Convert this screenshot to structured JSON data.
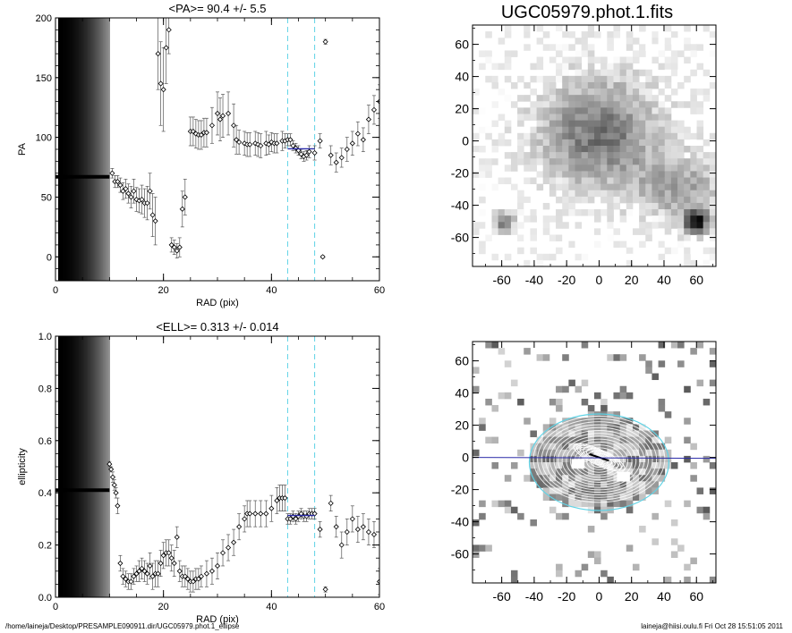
{
  "footer": {
    "path": "/home/laineja/Desktop/PRESAMPLE090911.dir/UGC05979.phot.1_ellipse",
    "stamp": "laineja@hiisi.oulu.fi  Fri Oct 28 15:51:05 2011"
  },
  "colors": {
    "marker": "#000000",
    "fit": "#2a2aa8",
    "guide": "#5fd3e6"
  },
  "chart_data": [
    {
      "type": "scatter",
      "title": "<PA>=  90.4 +/-   5.5",
      "xlabel": "RAD (pix)",
      "ylabel": "PA",
      "xlim": [
        0,
        60
      ],
      "ylim": [
        -20,
        200
      ],
      "xticks": [
        "0",
        "20",
        "40",
        "60"
      ],
      "yticks": [
        "0",
        "50",
        "100",
        "150",
        "200"
      ],
      "guide_lines_x": [
        43,
        48
      ],
      "points": [
        [
          10.5,
          70,
          4
        ],
        [
          11,
          63,
          5
        ],
        [
          11.5,
          63,
          5
        ],
        [
          12,
          60,
          6
        ],
        [
          12.5,
          55,
          7
        ],
        [
          13,
          57,
          8
        ],
        [
          13.5,
          53,
          8
        ],
        [
          14,
          50,
          9
        ],
        [
          14.5,
          55,
          10
        ],
        [
          15,
          48,
          10
        ],
        [
          15.5,
          47,
          10
        ],
        [
          16,
          48,
          12
        ],
        [
          16.5,
          45,
          12
        ],
        [
          17,
          45,
          14
        ],
        [
          17.5,
          55,
          15
        ],
        [
          18,
          35,
          18
        ],
        [
          18.5,
          30,
          20
        ],
        [
          19,
          170,
          30
        ],
        [
          19.5,
          145,
          35
        ],
        [
          20,
          140,
          35
        ],
        [
          20.5,
          175,
          30
        ],
        [
          21,
          190,
          20
        ],
        [
          21.5,
          10,
          6
        ],
        [
          22,
          8,
          6
        ],
        [
          22.5,
          5,
          6
        ],
        [
          23,
          8,
          8
        ],
        [
          23.5,
          40,
          15
        ],
        [
          24,
          50,
          15
        ],
        [
          25,
          105,
          12
        ],
        [
          25.5,
          105,
          12
        ],
        [
          26,
          103,
          12
        ],
        [
          26.5,
          102,
          12
        ],
        [
          27,
          102,
          12
        ],
        [
          27.5,
          104,
          12
        ],
        [
          28,
          104,
          12
        ],
        [
          29,
          110,
          15
        ],
        [
          30,
          120,
          18
        ],
        [
          30.5,
          115,
          18
        ],
        [
          31,
          118,
          18
        ],
        [
          32,
          120,
          18
        ],
        [
          33,
          110,
          18
        ],
        [
          33.5,
          98,
          12
        ],
        [
          34,
          96,
          10
        ],
        [
          35,
          95,
          10
        ],
        [
          35.5,
          94,
          10
        ],
        [
          36,
          94,
          10
        ],
        [
          37,
          95,
          10
        ],
        [
          37.5,
          94,
          10
        ],
        [
          38,
          93,
          10
        ],
        [
          39,
          95,
          10
        ],
        [
          39.5,
          94,
          8
        ],
        [
          40,
          96,
          8
        ],
        [
          40.5,
          95,
          8
        ],
        [
          41,
          95,
          8
        ],
        [
          42,
          97,
          8
        ],
        [
          42.5,
          97,
          6
        ],
        [
          43,
          98,
          5
        ],
        [
          43.5,
          98,
          5
        ],
        [
          44,
          93,
          4
        ],
        [
          44.5,
          91,
          4
        ],
        [
          45,
          89,
          4
        ],
        [
          45.5,
          86,
          4
        ],
        [
          46,
          84,
          4
        ],
        [
          46.5,
          85,
          4
        ],
        [
          47,
          88,
          5
        ],
        [
          48,
          87,
          6
        ],
        [
          49,
          97,
          6
        ],
        [
          49.5,
          0,
          1
        ],
        [
          50,
          180,
          2
        ],
        [
          51,
          85,
          8
        ],
        [
          52,
          79,
          8
        ],
        [
          53,
          83,
          8
        ],
        [
          54,
          90,
          10
        ],
        [
          55,
          95,
          10
        ],
        [
          56,
          103,
          10
        ],
        [
          57,
          98,
          10
        ],
        [
          58,
          115,
          12
        ],
        [
          59,
          123,
          12
        ],
        [
          60,
          130,
          14
        ]
      ],
      "fit": {
        "x": [
          43,
          48
        ],
        "y": [
          90.4,
          90.4
        ]
      }
    },
    {
      "type": "scatter",
      "title": "<ELL>= 0.313 +/-  0.014",
      "xlabel": "RAD (pix)",
      "ylabel": "ellipticity",
      "xlim": [
        0,
        60
      ],
      "ylim": [
        0,
        1
      ],
      "xticks": [
        "0",
        "20",
        "40",
        "60"
      ],
      "yticks": [
        "0.0",
        "0.2",
        "0.4",
        "0.6",
        "0.8",
        "1.0"
      ],
      "guide_lines_x": [
        43,
        48
      ],
      "points": [
        [
          10,
          0.51,
          0.01
        ],
        [
          10.3,
          0.49,
          0.01
        ],
        [
          10.6,
          0.46,
          0.02
        ],
        [
          10.9,
          0.43,
          0.02
        ],
        [
          11.2,
          0.4,
          0.02
        ],
        [
          11.5,
          0.35,
          0.03
        ],
        [
          12,
          0.13,
          0.03
        ],
        [
          12.5,
          0.08,
          0.03
        ],
        [
          13,
          0.07,
          0.03
        ],
        [
          13.5,
          0.06,
          0.03
        ],
        [
          14,
          0.06,
          0.03
        ],
        [
          14.5,
          0.08,
          0.03
        ],
        [
          15,
          0.09,
          0.03
        ],
        [
          15.5,
          0.1,
          0.04
        ],
        [
          16,
          0.11,
          0.04
        ],
        [
          16.5,
          0.1,
          0.04
        ],
        [
          17,
          0.09,
          0.04
        ],
        [
          17.5,
          0.12,
          0.05
        ],
        [
          18,
          0.08,
          0.05
        ],
        [
          18.5,
          0.09,
          0.05
        ],
        [
          19,
          0.09,
          0.05
        ],
        [
          19.5,
          0.13,
          0.05
        ],
        [
          20,
          0.16,
          0.05
        ],
        [
          20.5,
          0.17,
          0.05
        ],
        [
          21,
          0.17,
          0.05
        ],
        [
          21.5,
          0.15,
          0.05
        ],
        [
          22,
          0.13,
          0.05
        ],
        [
          22.5,
          0.23,
          0.04
        ],
        [
          23,
          0.1,
          0.04
        ],
        [
          23.5,
          0.08,
          0.04
        ],
        [
          24,
          0.08,
          0.04
        ],
        [
          24.5,
          0.07,
          0.04
        ],
        [
          25,
          0.06,
          0.04
        ],
        [
          25.5,
          0.06,
          0.04
        ],
        [
          26,
          0.07,
          0.04
        ],
        [
          26.5,
          0.07,
          0.04
        ],
        [
          27,
          0.08,
          0.04
        ],
        [
          28,
          0.09,
          0.05
        ],
        [
          29,
          0.1,
          0.05
        ],
        [
          30,
          0.12,
          0.05
        ],
        [
          31,
          0.17,
          0.05
        ],
        [
          32,
          0.19,
          0.05
        ],
        [
          33,
          0.21,
          0.05
        ],
        [
          34,
          0.27,
          0.05
        ],
        [
          35,
          0.3,
          0.05
        ],
        [
          35.5,
          0.32,
          0.05
        ],
        [
          36,
          0.32,
          0.05
        ],
        [
          37,
          0.32,
          0.05
        ],
        [
          38,
          0.32,
          0.05
        ],
        [
          39,
          0.32,
          0.05
        ],
        [
          40,
          0.34,
          0.05
        ],
        [
          41,
          0.37,
          0.05
        ],
        [
          41.5,
          0.38,
          0.05
        ],
        [
          42,
          0.38,
          0.05
        ],
        [
          42.5,
          0.38,
          0.05
        ],
        [
          43,
          0.3,
          0.02
        ],
        [
          43.5,
          0.3,
          0.02
        ],
        [
          44,
          0.31,
          0.02
        ],
        [
          44.5,
          0.3,
          0.02
        ],
        [
          45,
          0.31,
          0.02
        ],
        [
          45.5,
          0.32,
          0.02
        ],
        [
          46,
          0.31,
          0.02
        ],
        [
          46.5,
          0.31,
          0.02
        ],
        [
          47,
          0.32,
          0.02
        ],
        [
          47.5,
          0.32,
          0.02
        ],
        [
          48,
          0.32,
          0.02
        ],
        [
          49,
          0.26,
          0.03
        ],
        [
          50,
          0.03,
          0.01
        ],
        [
          51,
          0.36,
          0.03
        ],
        [
          52,
          0.27,
          0.04
        ],
        [
          53,
          0.2,
          0.05
        ],
        [
          54,
          0.25,
          0.05
        ],
        [
          55,
          0.3,
          0.05
        ],
        [
          56,
          0.26,
          0.05
        ],
        [
          57,
          0.27,
          0.05
        ],
        [
          58,
          0.25,
          0.05
        ],
        [
          59,
          0.24,
          0.05
        ],
        [
          60,
          0.06,
          0.05
        ]
      ],
      "fit": {
        "x": [
          43,
          48
        ],
        "y": [
          0.313,
          0.313
        ]
      }
    },
    {
      "type": "heatmap",
      "title": "UGC05979.phot.1.fits",
      "xlim": [
        -78,
        72
      ],
      "ylim": [
        -78,
        72
      ],
      "xticks": [
        "-60",
        "-40",
        "-20",
        "0",
        "20",
        "40",
        "60"
      ],
      "yticks": [
        "-60",
        "-40",
        "-20",
        "0",
        "20",
        "40",
        "60"
      ],
      "blobs": [
        {
          "x": 0,
          "y": 5,
          "sx": 26,
          "sy": 24,
          "amp": 0.55
        },
        {
          "x": 50,
          "y": -30,
          "sx": 18,
          "sy": 14,
          "amp": 0.35
        },
        {
          "x": 60,
          "y": -50,
          "sx": 5,
          "sy": 5,
          "amp": 0.95
        },
        {
          "x": -58,
          "y": -50,
          "sx": 4,
          "sy": 4,
          "amp": 0.6
        }
      ]
    },
    {
      "type": "heatmap",
      "title": "",
      "xlim": [
        -78,
        72
      ],
      "ylim": [
        -78,
        72
      ],
      "xticks": [
        "-60",
        "-40",
        "-20",
        "0",
        "20",
        "40",
        "60"
      ],
      "yticks": [
        "-60",
        "-40",
        "-20",
        "0",
        "20",
        "40",
        "60"
      ],
      "outer_ellipse": {
        "x": 0,
        "y": -3,
        "a": 43,
        "b": 30,
        "color": "#5fd3e6"
      },
      "major_axis": {
        "y": 0,
        "color": "#2a2aa8"
      },
      "masks": [
        {
          "x": -13,
          "y": -4,
          "w": 8,
          "h": 6
        },
        {
          "x": 15,
          "y": -12,
          "w": 8,
          "h": 6
        }
      ]
    }
  ]
}
